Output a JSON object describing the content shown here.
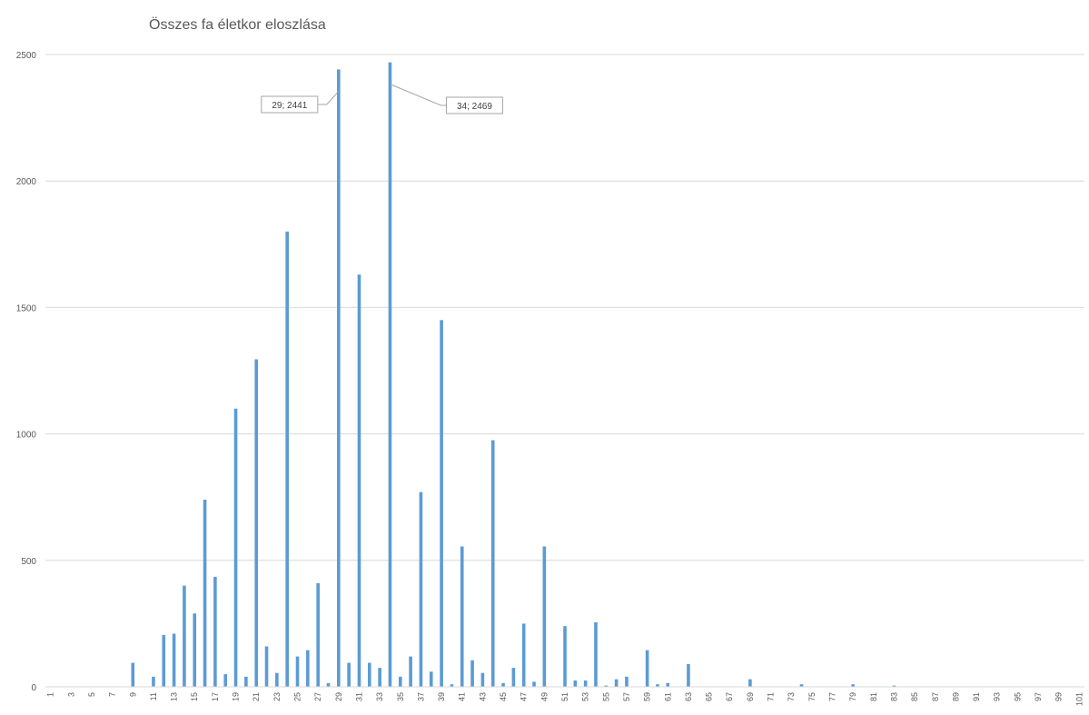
{
  "chart_data": {
    "type": "bar",
    "title": "Összes fa életkor eloszlása",
    "xlabel": "",
    "ylabel": "",
    "ylim": [
      0,
      2500
    ],
    "yticks": [
      0,
      500,
      1000,
      1500,
      2000,
      2500
    ],
    "x_tick_labels": [
      "1",
      "3",
      "5",
      "7",
      "9",
      "11",
      "13",
      "15",
      "17",
      "19",
      "21",
      "23",
      "25",
      "27",
      "29",
      "31",
      "33",
      "35",
      "37",
      "39",
      "41",
      "43",
      "45",
      "47",
      "49",
      "51",
      "53",
      "55",
      "57",
      "59",
      "61",
      "63",
      "65",
      "67",
      "69",
      "71",
      "73",
      "75",
      "77",
      "79",
      "81",
      "83",
      "85",
      "87",
      "89",
      "91",
      "93",
      "95",
      "97",
      "99",
      "101"
    ],
    "grid": true,
    "legend": "none",
    "bar_color": "#5b9bd5",
    "categories": [
      1,
      2,
      3,
      4,
      5,
      6,
      7,
      8,
      9,
      10,
      11,
      12,
      13,
      14,
      15,
      16,
      17,
      18,
      19,
      20,
      21,
      22,
      23,
      24,
      25,
      26,
      27,
      28,
      29,
      30,
      31,
      32,
      33,
      34,
      35,
      36,
      37,
      38,
      39,
      40,
      41,
      42,
      43,
      44,
      45,
      46,
      47,
      48,
      49,
      50,
      51,
      52,
      53,
      54,
      55,
      56,
      57,
      58,
      59,
      60,
      61,
      62,
      63,
      64,
      65,
      66,
      67,
      68,
      69,
      70,
      71,
      72,
      73,
      74,
      75,
      76,
      77,
      78,
      79,
      80,
      81,
      82,
      83,
      84,
      85,
      86,
      87,
      88,
      89,
      90,
      91,
      92,
      93,
      94,
      95,
      96,
      97,
      98,
      99,
      100,
      101
    ],
    "values": [
      0,
      0,
      0,
      0,
      0,
      0,
      0,
      0,
      95,
      0,
      40,
      205,
      210,
      400,
      290,
      740,
      435,
      50,
      1100,
      40,
      1295,
      160,
      55,
      1800,
      120,
      145,
      410,
      15,
      2441,
      95,
      1630,
      95,
      75,
      2469,
      40,
      120,
      770,
      60,
      1450,
      10,
      555,
      105,
      55,
      975,
      15,
      75,
      250,
      20,
      555,
      0,
      240,
      25,
      25,
      255,
      5,
      30,
      40,
      0,
      145,
      10,
      15,
      0,
      90,
      0,
      0,
      0,
      0,
      0,
      30,
      0,
      0,
      0,
      0,
      10,
      0,
      0,
      0,
      0,
      10,
      0,
      0,
      0,
      5,
      0,
      0,
      0,
      0,
      0,
      0,
      0,
      0,
      0,
      0,
      0,
      0,
      0,
      0,
      0,
      0,
      0,
      0
    ],
    "annotations": [
      {
        "x": 29,
        "value": 2441,
        "text": "29; 2441"
      },
      {
        "x": 34,
        "value": 2469,
        "text": "34; 2469"
      }
    ]
  }
}
